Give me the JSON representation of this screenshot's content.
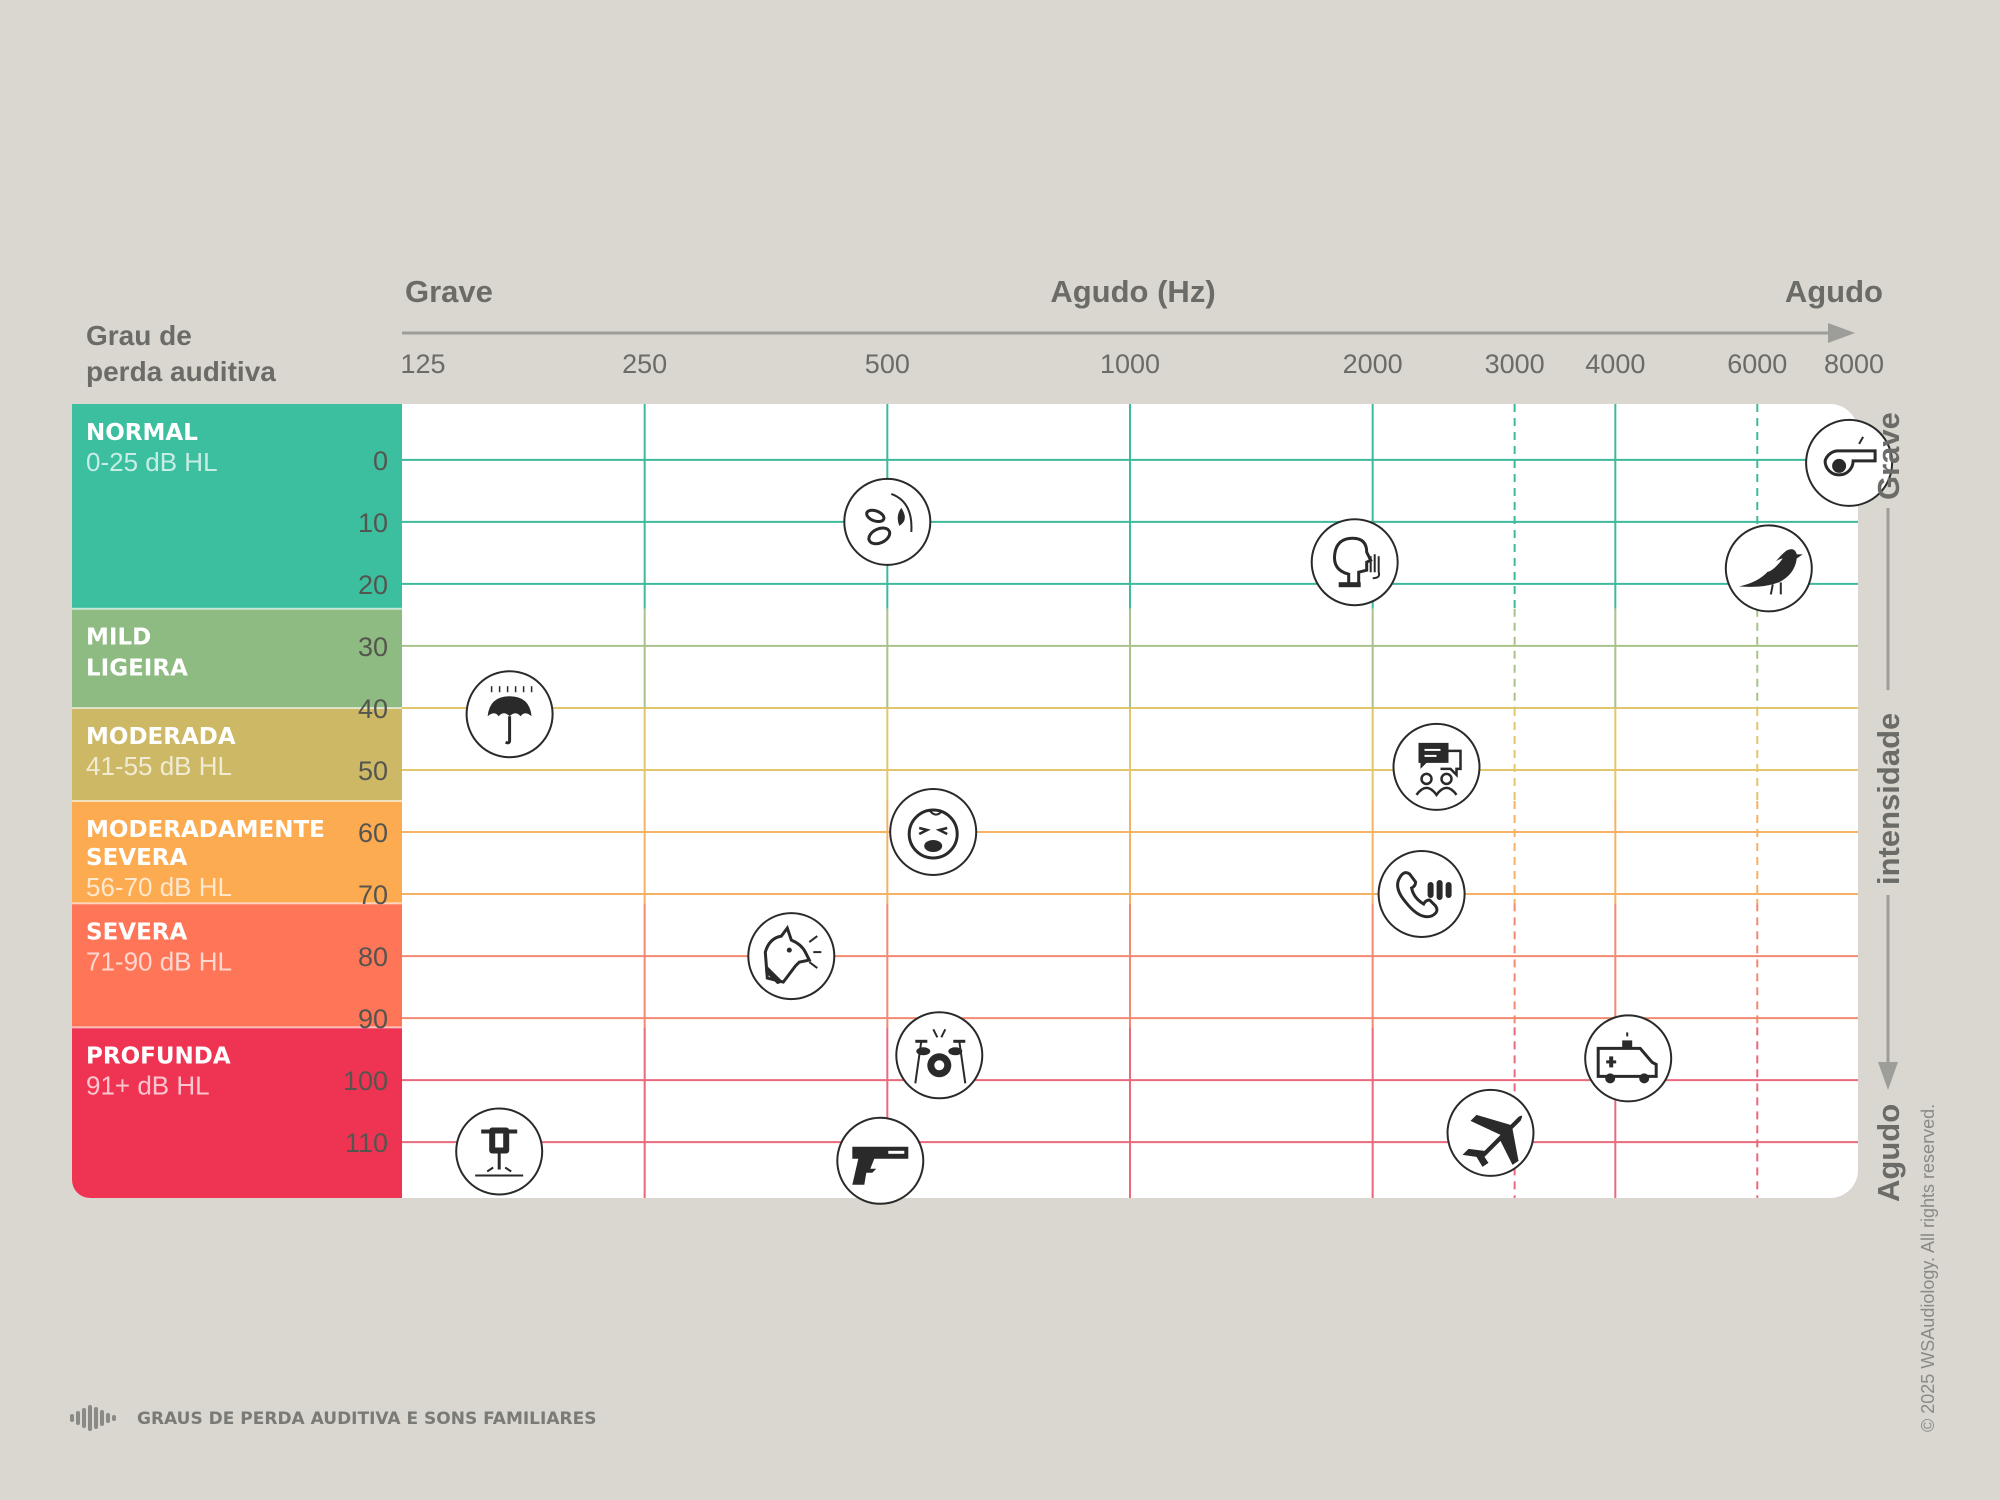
{
  "chart_data": {
    "type": "scatter",
    "title": "GRAUS DE PERDA AUDITIVA E SONS FAMILIARES",
    "y_label": "Grau de perda auditiva",
    "x_axis": {
      "left_label": "Grave",
      "center_label": "Agudo (Hz)",
      "right_label": "Agudo",
      "ticks": [
        125,
        250,
        500,
        1000,
        2000,
        3000,
        4000,
        6000,
        8000
      ],
      "dashed_ticks": [
        3000,
        6000
      ],
      "scale": "log"
    },
    "y_axis": {
      "ticks": [
        0,
        10,
        20,
        30,
        40,
        50,
        60,
        70,
        80,
        90,
        100,
        110
      ],
      "range": [
        -9,
        119
      ],
      "inverted": true,
      "side_top": "Grave",
      "side_middle": "intensidade",
      "side_bottom": "Agudo"
    },
    "bands": [
      {
        "title": "NORMAL",
        "range": "0-25 dB HL",
        "from": -9,
        "to": 24,
        "color": "#3bbf9e",
        "line": "#3fb99b",
        "text_color": "#ffffff"
      },
      {
        "title": "MILD",
        "range": "LIGEIRA",
        "from": 24,
        "to": 40,
        "color": "#8ebb82",
        "line": "#a9c28c",
        "text_color": "#ffffff",
        "range_bold": true
      },
      {
        "title": "MODERADA",
        "range": "41-55 dB HL",
        "from": 40,
        "to": 55,
        "color": "#cdb866",
        "line": "#e3c56c",
        "text_color": "#ffffff"
      },
      {
        "title": "MODERADAMENTE",
        "title2": "SEVERA",
        "range": "56-70 dB HL",
        "from": 55,
        "to": 71.5,
        "color": "#fdab50",
        "line": "#f5b265",
        "text_color": "#ffffff"
      },
      {
        "title": "SEVERA",
        "range": "71-90 dB HL",
        "from": 71.5,
        "to": 91.5,
        "color": "#ff7558",
        "line": "#f28a72",
        "text_color": "#ffffff"
      },
      {
        "title": "PROFUNDA",
        "range": "91+ dB HL",
        "from": 91.5,
        "to": 119,
        "color": "#ef3453",
        "line": "#e86a7c",
        "text_color": "#ffffff"
      }
    ],
    "points": [
      {
        "name": "whistle",
        "freq": 7800,
        "db": 0.5
      },
      {
        "name": "leaves-rustling",
        "freq": 500,
        "db": 10
      },
      {
        "name": "whispering",
        "freq": 1900,
        "db": 16.5
      },
      {
        "name": "bird",
        "freq": 6200,
        "db": 17.5
      },
      {
        "name": "rain-umbrella",
        "freq": 170,
        "db": 41
      },
      {
        "name": "conversation",
        "freq": 2400,
        "db": 49.5
      },
      {
        "name": "crying-baby",
        "freq": 570,
        "db": 60
      },
      {
        "name": "telephone-ringing",
        "freq": 2300,
        "db": 70
      },
      {
        "name": "dog-barking",
        "freq": 380,
        "db": 80
      },
      {
        "name": "drums",
        "freq": 580,
        "db": 96
      },
      {
        "name": "ambulance-siren",
        "freq": 4150,
        "db": 96.5
      },
      {
        "name": "jackhammer",
        "freq": 165,
        "db": 111.5
      },
      {
        "name": "airplane",
        "freq": 2800,
        "db": 108.5
      },
      {
        "name": "gunshot",
        "freq": 490,
        "db": 113
      }
    ]
  },
  "footer": {
    "title": "GRAUS DE PERDA AUDITIVA E SONS FAMILIARES",
    "icon": "sound-wave-icon"
  },
  "copyright": "© 2025 WSAudiology. All rights reserved.",
  "header": {
    "line1": "Grau de",
    "line2": "perda auditiva"
  }
}
